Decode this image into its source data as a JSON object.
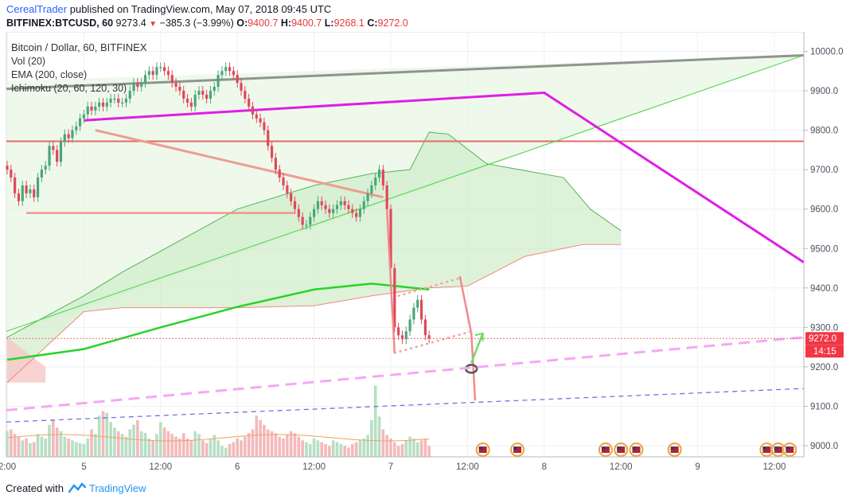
{
  "header": {
    "author": "CerealTrader",
    "published_text": "published on TradingView.com, May 07, 2018 09:45 UTC",
    "symbol": "BITFINEX:BTCUSD, 60",
    "last": "9273.4",
    "change": "−385.3 (−3.99%)",
    "o_label": "O:",
    "o_value": "9400.7",
    "h_label": "H:",
    "h_value": "9400.7",
    "l_label": "L:",
    "l_value": "9268.1",
    "c_label": "C:",
    "c_value": "9272.0"
  },
  "legend": {
    "title": "Bitcoin / Dollar, 60, BITFINEX",
    "vol": "Vol (20)",
    "ema": "EMA (200, close)",
    "ichimoku": "Ichimoku (20, 60, 120, 30)"
  },
  "price_badge": {
    "value": "9272.0",
    "countdown": "14:15",
    "color": "#f23645"
  },
  "footer": {
    "created_with": "Created with",
    "brand": "TradingView"
  },
  "chart_data": {
    "type": "candlestick",
    "y_range": [
      8960,
      10060
    ],
    "y_ticks": [
      "10000.0",
      "9900.0",
      "9800.0",
      "9700.0",
      "9600.0",
      "9500.0",
      "9400.0",
      "9300.0",
      "9200.0",
      "9100.0",
      "9000.0"
    ],
    "y_tick_values": [
      10000,
      9900,
      9800,
      9700,
      9600,
      9500,
      9400,
      9300,
      9200,
      9100,
      9000
    ],
    "x_labels": [
      {
        "label": "2:00",
        "bar": 0
      },
      {
        "label": "5",
        "bar": 20
      },
      {
        "label": "12:00",
        "bar": 40
      },
      {
        "label": "6",
        "bar": 60
      },
      {
        "label": "12:00",
        "bar": 80
      },
      {
        "label": "7",
        "bar": 100
      },
      {
        "label": "12:00",
        "bar": 120
      },
      {
        "label": "8",
        "bar": 140
      },
      {
        "label": "12:00",
        "bar": 160
      },
      {
        "label": "9",
        "bar": 180
      },
      {
        "label": "12:00",
        "bar": 200
      }
    ],
    "candles_close": [
      9700,
      9680,
      9640,
      9620,
      9660,
      9640,
      9650,
      9630,
      9680,
      9700,
      9710,
      9760,
      9750,
      9720,
      9770,
      9790,
      9780,
      9800,
      9810,
      9830,
      9840,
      9860,
      9850,
      9860,
      9870,
      9860,
      9870,
      9880,
      9880,
      9870,
      9870,
      9880,
      9900,
      9920,
      9910,
      9920,
      9940,
      9950,
      9940,
      9960,
      9960,
      9950,
      9940,
      9920,
      9910,
      9900,
      9880,
      9870,
      9860,
      9890,
      9900,
      9890,
      9880,
      9900,
      9910,
      9940,
      9950,
      9960,
      9950,
      9940,
      9920,
      9900,
      9880,
      9860,
      9840,
      9830,
      9820,
      9800,
      9760,
      9730,
      9700,
      9680,
      9660,
      9640,
      9620,
      9600,
      9580,
      9560,
      9560,
      9580,
      9600,
      9620,
      9610,
      9600,
      9590,
      9600,
      9610,
      9620,
      9610,
      9600,
      9590,
      9580,
      9600,
      9620,
      9640,
      9660,
      9680,
      9700,
      9660,
      9600,
      9450,
      9300,
      9280,
      9270,
      9290,
      9320,
      9350,
      9370,
      9320,
      9280,
      9272
    ],
    "volumes": [
      28,
      30,
      25,
      22,
      18,
      20,
      15,
      16,
      25,
      22,
      20,
      35,
      40,
      32,
      28,
      22,
      20,
      18,
      16,
      15,
      14,
      20,
      30,
      25,
      45,
      50,
      48,
      38,
      32,
      28,
      25,
      22,
      30,
      35,
      40,
      28,
      26,
      20,
      18,
      25,
      38,
      32,
      28,
      25,
      22,
      20,
      26,
      20,
      18,
      28,
      25,
      18,
      15,
      20,
      24,
      18,
      12,
      10,
      14,
      16,
      20,
      18,
      22,
      26,
      30,
      45,
      40,
      35,
      30,
      28,
      26,
      22,
      20,
      24,
      28,
      26,
      22,
      18,
      16,
      14,
      20,
      18,
      16,
      14,
      12,
      18,
      16,
      14,
      12,
      10,
      14,
      16,
      18,
      20,
      24,
      40,
      78,
      44,
      30,
      24,
      20,
      16,
      12,
      14,
      18,
      22,
      20,
      16,
      18,
      20,
      12
    ],
    "ema200": [
      [
        0,
        9218
      ],
      [
        20,
        9245
      ],
      [
        40,
        9300
      ],
      [
        60,
        9352
      ],
      [
        80,
        9396
      ],
      [
        95,
        9411
      ],
      [
        110,
        9396
      ]
    ],
    "ichimoku_upper": [
      [
        0,
        9275
      ],
      [
        20,
        9380
      ],
      [
        30,
        9440
      ],
      [
        45,
        9520
      ],
      [
        60,
        9600
      ],
      [
        80,
        9660
      ],
      [
        95,
        9690
      ],
      [
        105,
        9700
      ],
      [
        110,
        9795
      ],
      [
        115,
        9790
      ],
      [
        125,
        9715
      ],
      [
        145,
        9680
      ],
      [
        152,
        9600
      ],
      [
        160,
        9545
      ]
    ],
    "ichimoku_lower": [
      [
        0,
        9160
      ],
      [
        20,
        9340
      ],
      [
        30,
        9350
      ],
      [
        60,
        9350
      ],
      [
        80,
        9355
      ],
      [
        95,
        9380
      ],
      [
        110,
        9400
      ],
      [
        120,
        9405
      ],
      [
        135,
        9480
      ],
      [
        150,
        9510
      ],
      [
        160,
        9510
      ]
    ],
    "resistance_level": 9772,
    "support_level": 9590,
    "projection_points": [
      9400,
      9270,
      9225,
      9190
    ]
  }
}
